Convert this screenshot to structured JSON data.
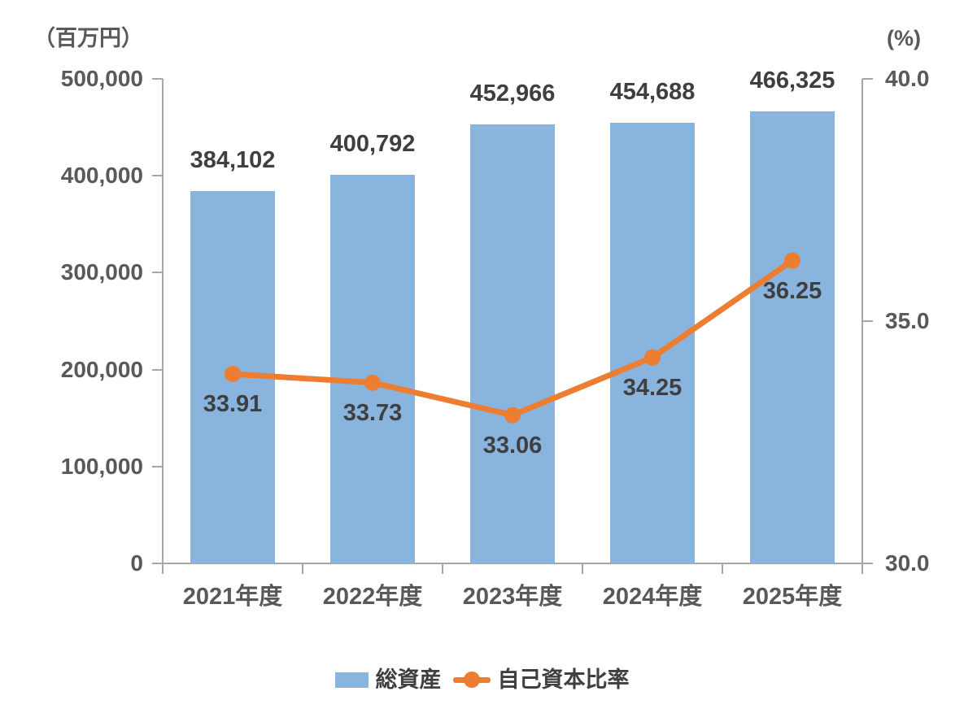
{
  "chart_data": {
    "type": "combo",
    "categories": [
      "2021年度",
      "2022年度",
      "2023年度",
      "2024年度",
      "2025年度"
    ],
    "series": [
      {
        "name": "総資産",
        "type": "bar",
        "axis": "left",
        "color": "#89B4DE",
        "values": [
          384102,
          400792,
          452966,
          454688,
          466325
        ],
        "labels": [
          "384,102",
          "400,792",
          "452,966",
          "454,688",
          "466,325"
        ]
      },
      {
        "name": "自己資本比率",
        "type": "line",
        "axis": "right",
        "color": "#ED7D31",
        "values": [
          33.91,
          33.73,
          33.06,
          34.25,
          36.25
        ],
        "labels": [
          "33.91",
          "33.73",
          "33.06",
          "34.25",
          "36.25"
        ]
      }
    ],
    "left_axis": {
      "title": "（百万円）",
      "min": 0,
      "max": 500000,
      "tick_values": [
        0,
        100000,
        200000,
        300000,
        400000,
        500000
      ],
      "tick_labels": [
        "0",
        "100,000",
        "200,000",
        "300,000",
        "400,000",
        "500,000"
      ]
    },
    "right_axis": {
      "title": "(%)",
      "min": 30,
      "max": 40,
      "tick_values": [
        30,
        35,
        40
      ],
      "tick_labels": [
        "30.0",
        "35.0",
        "40.0"
      ]
    },
    "legend": {
      "position": "bottom",
      "items": [
        "総資産",
        "自己資本比率"
      ]
    },
    "grid": false,
    "colors": {
      "axis_line": "#A6A6A6",
      "tick_text": "#595959",
      "data_label_text": "#3F3F3F",
      "background": "#FFFFFF"
    }
  }
}
